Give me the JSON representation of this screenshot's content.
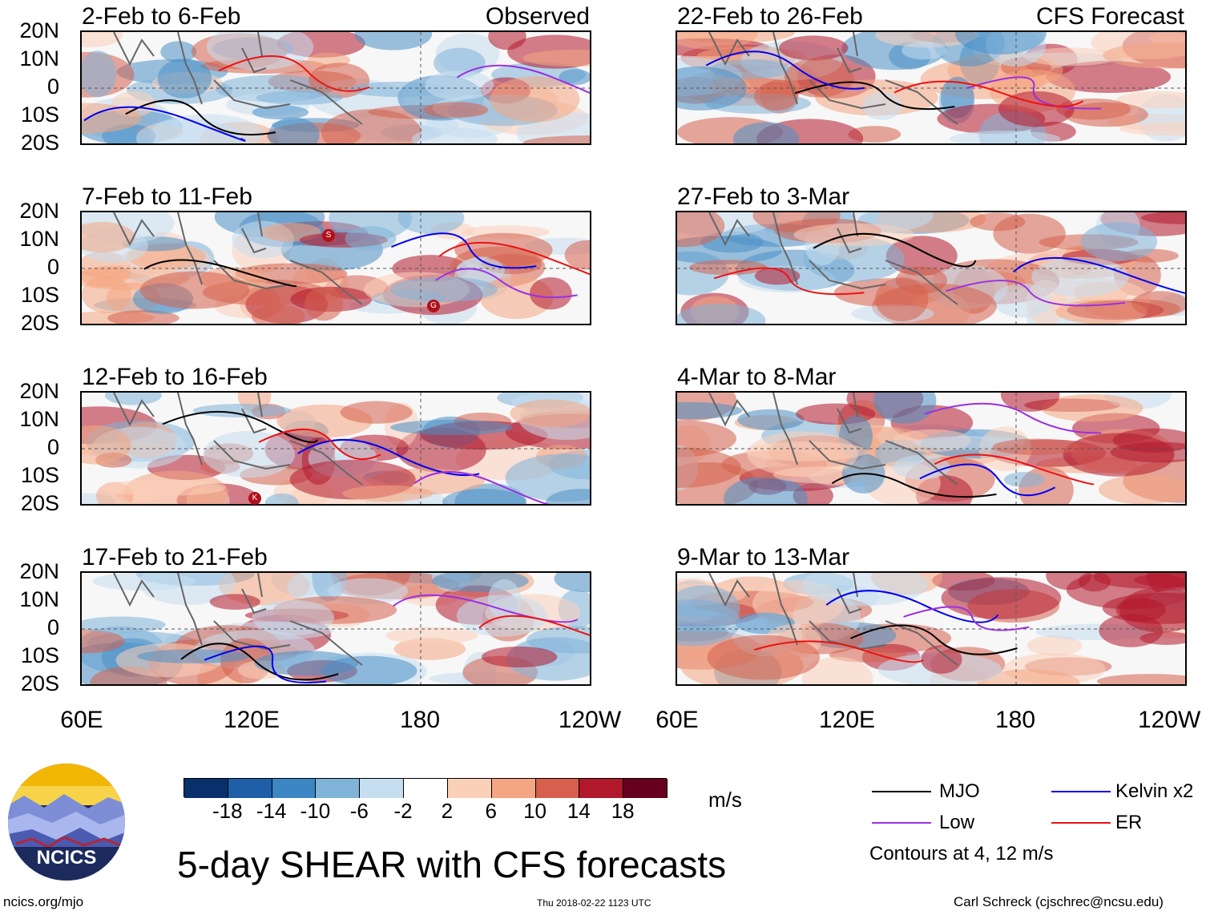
{
  "left_column": {
    "header_label": "Observed",
    "panels": [
      {
        "title": "2-Feb to 6-Feb",
        "storms": []
      },
      {
        "title": "7-Feb to 11-Feb",
        "storms": [
          "S",
          "G"
        ]
      },
      {
        "title": "12-Feb to 16-Feb",
        "storms": [
          "K"
        ]
      },
      {
        "title": "17-Feb to 21-Feb",
        "storms": []
      }
    ]
  },
  "right_column": {
    "header_label": "CFS Forecast",
    "panels": [
      {
        "title": "22-Feb to 26-Feb"
      },
      {
        "title": "27-Feb to 3-Mar"
      },
      {
        "title": "4-Mar to 8-Mar"
      },
      {
        "title": "9-Mar to 13-Mar"
      }
    ]
  },
  "axes": {
    "y_ticks": [
      "20N",
      "10N",
      "0",
      "10S",
      "20S"
    ],
    "x_ticks": [
      "60E",
      "120E",
      "180",
      "120W"
    ]
  },
  "colorbar": {
    "labels": [
      "-18",
      "-14",
      "-10",
      "-6",
      "-2",
      "2",
      "6",
      "10",
      "14",
      "18"
    ],
    "unit": "m/s",
    "colors": [
      "#08306b",
      "#1f5fa8",
      "#3c86c4",
      "#7fb3d8",
      "#c6dff0",
      "#ffffff",
      "#fbd0b9",
      "#f4a582",
      "#d6604d",
      "#b2182b",
      "#67001f"
    ]
  },
  "legend": {
    "items": [
      {
        "label": "MJO",
        "color": "#000000"
      },
      {
        "label": "Kelvin x2",
        "color": "#0000ee"
      },
      {
        "label": "Low",
        "color": "#9a30e0"
      },
      {
        "label": "ER",
        "color": "#ee1111"
      }
    ],
    "note": "Contours at 4, 12 m/s"
  },
  "logo_text": "NCICS",
  "main_title": "5-day SHEAR with CFS forecasts",
  "footer": {
    "left": "ncics.org/mjo",
    "center": "Thu 2018-02-22 1123 UTC",
    "right": "Carl Schreck (cjschrec@ncsu.edu)"
  }
}
